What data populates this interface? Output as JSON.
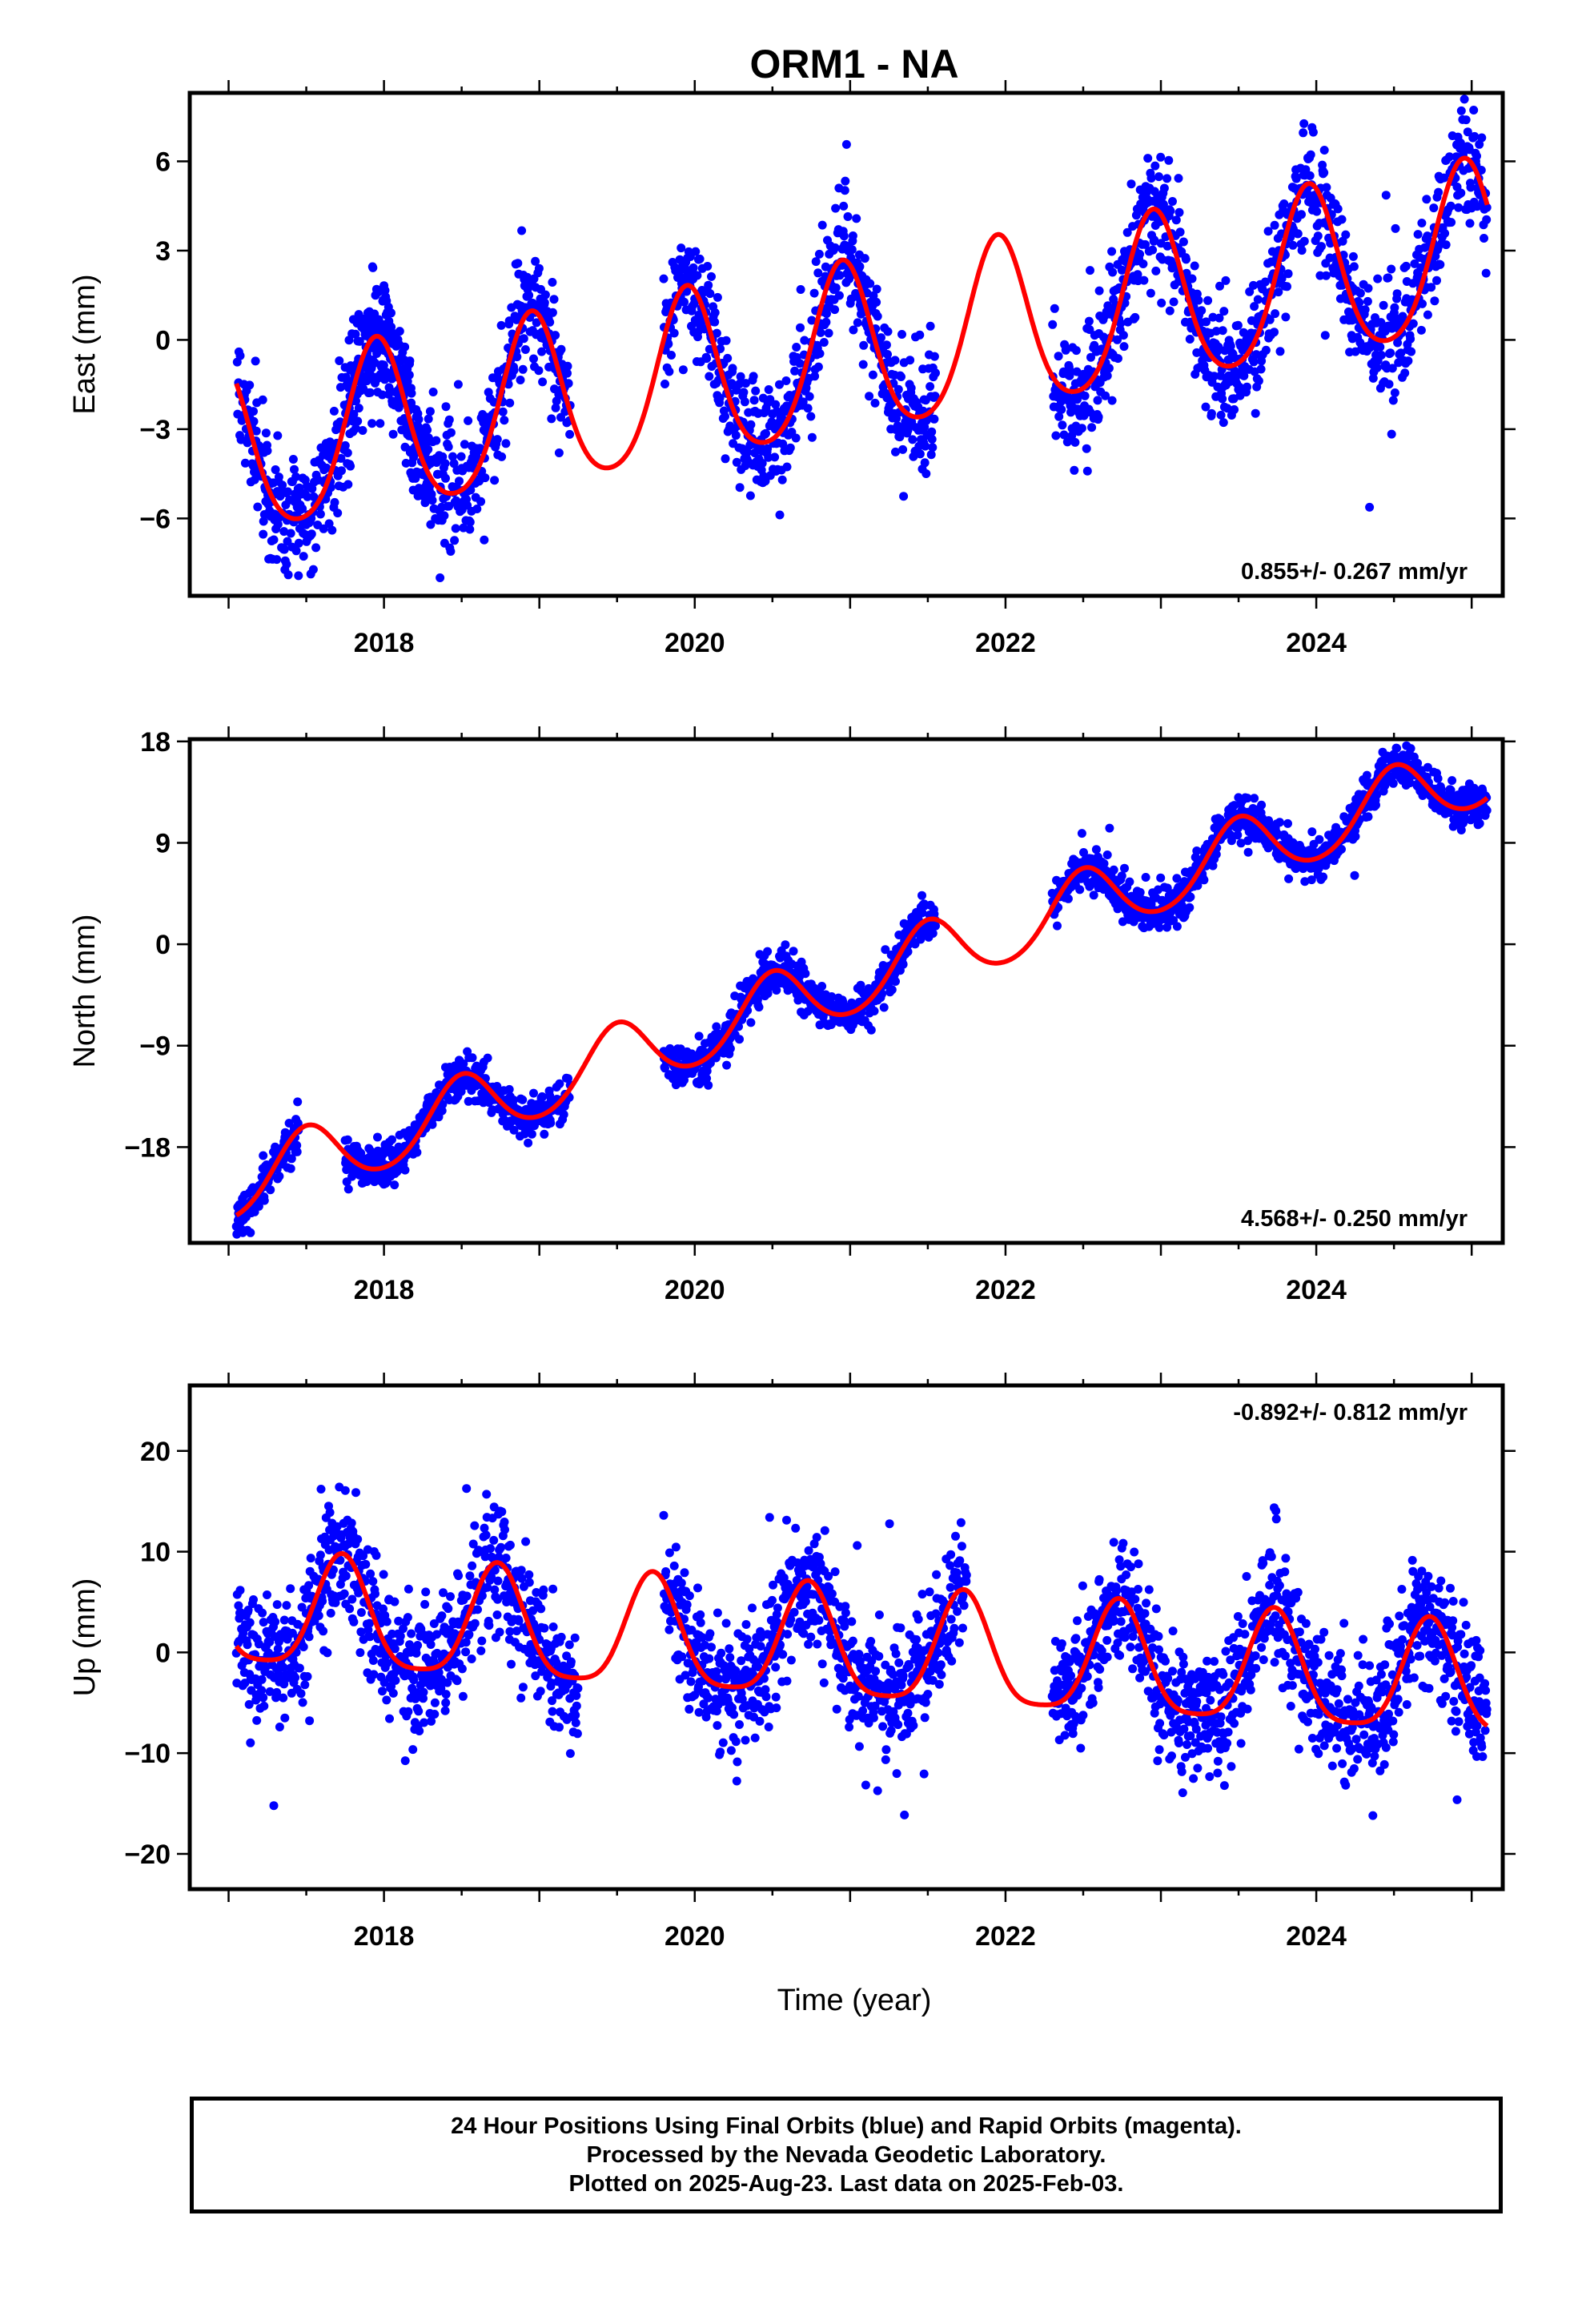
{
  "title": "ORM1 - NA",
  "xlabel": "Time (year)",
  "footer": {
    "line1": "24 Hour Positions Using Final Orbits (blue) and Rapid Orbits (magenta).",
    "line2": "Processed by the Nevada Geodetic Laboratory.",
    "line3": "Plotted on 2025-Aug-23. Last data on 2025-Feb-03."
  },
  "colors": {
    "points": "#0000ff",
    "fit": "#ff0000",
    "rapid_orbits": "#ff00ff"
  },
  "chart_data": [
    {
      "type": "scatter",
      "component": "East",
      "ylabel": "East (mm)",
      "rate_label": "0.855+/- 0.267 mm/yr",
      "rate_position": "bottom-right",
      "xlim": [
        2016.75,
        2025.2
      ],
      "ylim": [
        -8.6,
        8.3
      ],
      "xticks": [
        2018,
        2020,
        2022,
        2024
      ],
      "yticks": [
        -6,
        -3,
        0,
        3,
        6
      ],
      "grid": false,
      "fit": {
        "trend_mm_per_yr": 0.855,
        "offset_at_2021": -0.52,
        "annual_amp": 2.85,
        "annual_peak": 2021.95,
        "semiannual_amp": 0.4
      },
      "data_ranges": [
        [
          2017.05,
          2018.3
        ],
        [
          2017.75,
          2019.2
        ],
        [
          2019.8,
          2021.55
        ],
        [
          2022.3,
          2025.1
        ]
      ],
      "scatter_sigma": 1.0
    },
    {
      "type": "scatter",
      "component": "North",
      "ylabel": "North (mm)",
      "rate_label": "4.568+/- 0.250 mm/yr",
      "rate_position": "bottom-right",
      "xlim": [
        2016.75,
        2025.2
      ],
      "ylim": [
        -26.5,
        18.2
      ],
      "xticks": [
        2018,
        2020,
        2022,
        2024
      ],
      "yticks": [
        -18,
        -9,
        0,
        9,
        18
      ],
      "grid": false,
      "fit": {
        "trend_mm_per_yr": 4.568,
        "offset_at_2021": -3.4,
        "annual_amp": 3.0,
        "annual_peak": 2021.5,
        "semiannual_amp": 0.3
      },
      "data_ranges": [
        [
          2017.05,
          2017.45
        ],
        [
          2017.75,
          2019.2
        ],
        [
          2019.8,
          2021.55
        ],
        [
          2022.3,
          2025.1
        ]
      ],
      "scatter_sigma": 0.9
    },
    {
      "type": "scatter",
      "component": "Up",
      "ylabel": "Up (mm)",
      "rate_label": "-0.892+/- 0.812 mm/yr",
      "rate_position": "top-right",
      "xlim": [
        2016.75,
        2025.2
      ],
      "ylim": [
        -23.5,
        26.5
      ],
      "xticks": [
        2018,
        2020,
        2022,
        2024
      ],
      "yticks": [
        -20,
        -10,
        0,
        10,
        20
      ],
      "grid": false,
      "fit": {
        "trend_mm_per_yr": -0.892,
        "offset_at_2021": 0.2,
        "annual_amp": 5.5,
        "annual_peak": 2020.73,
        "semiannual_amp": 1.2
      },
      "data_ranges": [
        [
          2017.05,
          2019.25
        ],
        [
          2019.8,
          2021.75
        ],
        [
          2022.3,
          2025.1
        ]
      ],
      "scatter_sigma": 3.2
    }
  ]
}
